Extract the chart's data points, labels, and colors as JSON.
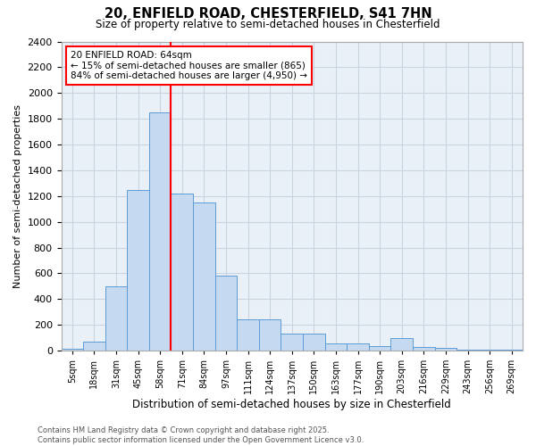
{
  "title1": "20, ENFIELD ROAD, CHESTERFIELD, S41 7HN",
  "title2": "Size of property relative to semi-detached houses in Chesterfield",
  "xlabel": "Distribution of semi-detached houses by size in Chesterfield",
  "ylabel": "Number of semi-detached properties",
  "categories": [
    "5sqm",
    "18sqm",
    "31sqm",
    "45sqm",
    "58sqm",
    "71sqm",
    "84sqm",
    "97sqm",
    "111sqm",
    "124sqm",
    "137sqm",
    "150sqm",
    "163sqm",
    "177sqm",
    "190sqm",
    "203sqm",
    "216sqm",
    "229sqm",
    "243sqm",
    "256sqm",
    "269sqm"
  ],
  "values": [
    15,
    70,
    500,
    1250,
    1850,
    1220,
    1150,
    580,
    240,
    240,
    130,
    130,
    55,
    55,
    35,
    95,
    28,
    18,
    8,
    4,
    4
  ],
  "bar_color": "#c5d9f0",
  "bar_edge_color": "#5b9bd5",
  "annotation_title": "20 ENFIELD ROAD: 64sqm",
  "annotation_line1": "← 15% of semi-detached houses are smaller (865)",
  "annotation_line2": "84% of semi-detached houses are larger (4,950) →",
  "annotation_box_color": "white",
  "annotation_box_edge": "red",
  "ylim": [
    0,
    2400
  ],
  "yticks": [
    0,
    200,
    400,
    600,
    800,
    1000,
    1200,
    1400,
    1600,
    1800,
    2000,
    2200,
    2400
  ],
  "red_line_color": "red",
  "grid_color": "#c8d4e0",
  "background_color": "#eaf0f8",
  "footer1": "Contains HM Land Registry data © Crown copyright and database right 2025.",
  "footer2": "Contains public sector information licensed under the Open Government Licence v3.0."
}
